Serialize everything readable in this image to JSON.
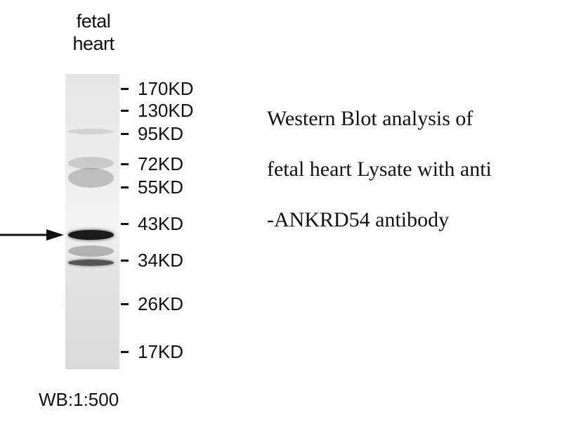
{
  "sample_label": [
    "fetal",
    "heart"
  ],
  "markers": [
    "170KD",
    "130KD",
    "95KD",
    "72KD",
    "55KD",
    "43KD",
    "34KD",
    "26KD",
    "17KD"
  ],
  "description": [
    "Western Blot analysis of",
    "fetal heart Lysate with anti",
    "-ANKRD54 antibody"
  ],
  "dilution": "WB:1:500"
}
